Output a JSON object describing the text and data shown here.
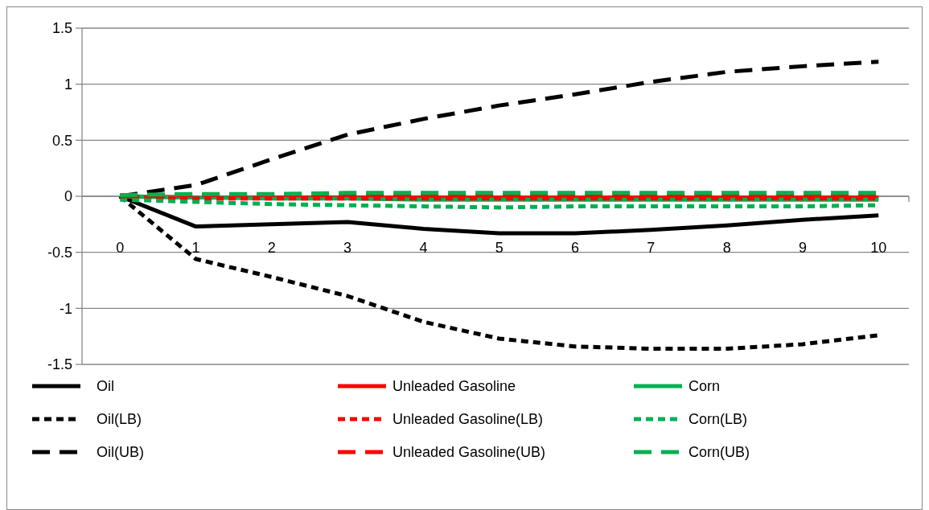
{
  "chart_data": {
    "type": "line",
    "x": [
      0,
      1,
      2,
      3,
      4,
      5,
      6,
      7,
      8,
      9,
      10
    ],
    "xlim": [
      -0.5,
      10.4
    ],
    "xticks": [
      0,
      1,
      2,
      3,
      4,
      5,
      6,
      7,
      8,
      9,
      10
    ],
    "ylim": [
      -1.5,
      1.5
    ],
    "yticks": [
      -1.5,
      -1,
      -0.5,
      0,
      0.5,
      1,
      1.5
    ],
    "grid": "y",
    "legend": "bottom",
    "series": [
      {
        "name": "Oil",
        "color": "#000000",
        "line_style": "solid",
        "values": [
          0,
          -0.27,
          -0.25,
          -0.23,
          -0.29,
          -0.33,
          -0.33,
          -0.3,
          -0.26,
          -0.21,
          -0.17
        ]
      },
      {
        "name": "Unleaded Gasoline",
        "color": "#ff0000",
        "line_style": "solid",
        "values": [
          0,
          -0.01,
          -0.01,
          -0.01,
          -0.01,
          -0.01,
          -0.01,
          -0.01,
          -0.01,
          -0.01,
          -0.01
        ]
      },
      {
        "name": "Corn",
        "color": "#00b050",
        "line_style": "solid",
        "values": [
          0,
          -0.01,
          -0.02,
          -0.02,
          -0.03,
          -0.03,
          -0.03,
          -0.03,
          -0.03,
          -0.03,
          -0.03
        ]
      },
      {
        "name": "Oil(LB)",
        "color": "#000000",
        "line_style": "dotted",
        "values": [
          0,
          -0.56,
          -0.72,
          -0.89,
          -1.12,
          -1.27,
          -1.34,
          -1.36,
          -1.36,
          -1.32,
          -1.24
        ]
      },
      {
        "name": "Unleaded Gasoline(LB)",
        "color": "#ff0000",
        "line_style": "dotted",
        "values": [
          -0.01,
          -0.02,
          -0.02,
          -0.02,
          -0.02,
          -0.02,
          -0.02,
          -0.02,
          -0.02,
          -0.02,
          -0.02
        ]
      },
      {
        "name": "Corn(LB)",
        "color": "#00b050",
        "line_style": "dotted",
        "values": [
          -0.03,
          -0.05,
          -0.07,
          -0.08,
          -0.09,
          -0.1,
          -0.09,
          -0.09,
          -0.09,
          -0.09,
          -0.08
        ]
      },
      {
        "name": "Oil(UB)",
        "color": "#000000",
        "line_style": "dashed",
        "values": [
          0,
          0.1,
          0.33,
          0.55,
          0.69,
          0.81,
          0.91,
          1.02,
          1.11,
          1.16,
          1.2
        ]
      },
      {
        "name": "Unleaded Gasoline(UB)",
        "color": "#ff0000",
        "line_style": "dashed",
        "values": [
          0,
          0.01,
          0.01,
          0.01,
          0.01,
          0.01,
          0.01,
          0.01,
          0.01,
          0.01,
          0.01
        ]
      },
      {
        "name": "Corn(UB)",
        "color": "#00b050",
        "line_style": "dashed",
        "values": [
          0.01,
          0.02,
          0.02,
          0.03,
          0.03,
          0.03,
          0.03,
          0.03,
          0.03,
          0.03,
          0.03
        ]
      }
    ]
  }
}
